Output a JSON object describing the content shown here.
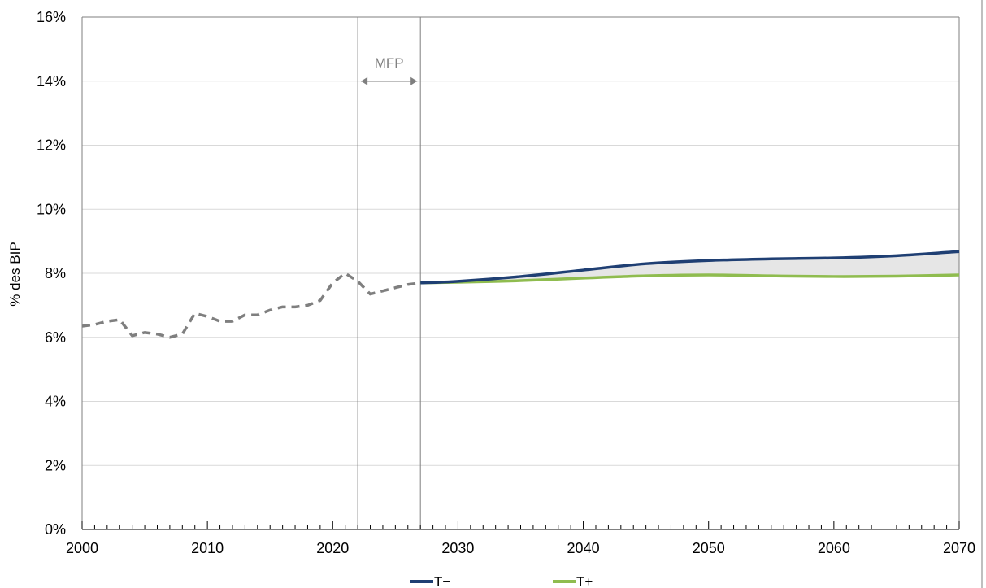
{
  "chart_data": {
    "type": "line",
    "ylabel": "% des BIP",
    "xlabel": "",
    "xlim": [
      2000,
      2070
    ],
    "ylim": [
      0,
      16
    ],
    "x_ticks": [
      "2000",
      "2010",
      "2020",
      "2030",
      "2040",
      "2050",
      "2060",
      "2070"
    ],
    "y_ticks": [
      "0%",
      "2%",
      "4%",
      "6%",
      "8%",
      "10%",
      "12%",
      "14%",
      "16%"
    ],
    "grid": "horizontal",
    "annotation": {
      "text": "MFP",
      "from": 2022,
      "to": 2027
    },
    "vlines": [
      2022,
      2027
    ],
    "legend_position": "bottom",
    "colors": {
      "historical": "#7f7f7f",
      "T-": "#1f3f73",
      "T+": "#8fbc4f",
      "band": "#e6e6e6",
      "grid": "#d9d9d9",
      "axis": "#7f7f7f"
    },
    "series": [
      {
        "x": [
          2000,
          2001,
          2002,
          2003,
          2004,
          2005,
          2006,
          2007,
          2008,
          2009,
          2010,
          2011,
          2012,
          2013,
          2014,
          2015,
          2016,
          2017,
          2018,
          2019,
          2020,
          2021,
          2022,
          2023,
          2024,
          2025,
          2026,
          2027
        ],
        "values": [
          6.35,
          6.4,
          6.5,
          6.55,
          6.05,
          6.15,
          6.1,
          6.0,
          6.1,
          6.75,
          6.65,
          6.5,
          6.5,
          6.7,
          6.7,
          6.85,
          6.95,
          6.95,
          7.0,
          7.15,
          7.7,
          8.0,
          7.75,
          7.35,
          7.45,
          7.55,
          7.65,
          7.7
        ]
      },
      {
        "name": "T−",
        "x": [
          2027,
          2030,
          2035,
          2040,
          2045,
          2050,
          2055,
          2060,
          2065,
          2070
        ],
        "values": [
          7.7,
          7.75,
          7.9,
          8.1,
          8.3,
          8.4,
          8.45,
          8.48,
          8.55,
          8.68
        ]
      },
      {
        "name": "T+",
        "x": [
          2027,
          2030,
          2035,
          2040,
          2045,
          2050,
          2055,
          2060,
          2065,
          2070
        ],
        "values": [
          7.7,
          7.72,
          7.77,
          7.85,
          7.92,
          7.95,
          7.92,
          7.9,
          7.91,
          7.95
        ]
      }
    ]
  }
}
